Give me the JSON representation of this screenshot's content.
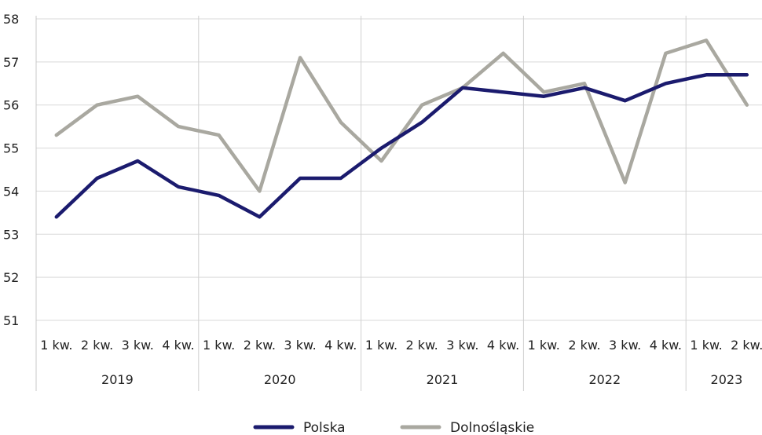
{
  "chart_data": {
    "type": "line",
    "categories": [
      "1 kw.",
      "2 kw.",
      "3 kw.",
      "4 kw.",
      "1 kw.",
      "2 kw.",
      "3 kw.",
      "4 kw.",
      "1 kw.",
      "2 kw.",
      "3 kw.",
      "4 kw.",
      "1 kw.",
      "2 kw.",
      "3 kw.",
      "4 kw.",
      "1 kw.",
      "2 kw."
    ],
    "years": [
      {
        "label": "2019",
        "start": 0,
        "end": 3
      },
      {
        "label": "2020",
        "start": 4,
        "end": 7
      },
      {
        "label": "2021",
        "start": 8,
        "end": 11
      },
      {
        "label": "2022",
        "start": 12,
        "end": 15
      },
      {
        "label": "2023",
        "start": 16,
        "end": 17
      }
    ],
    "series": [
      {
        "name": "Polska",
        "color": "#1b1b6e",
        "values": [
          53.4,
          54.3,
          54.7,
          54.1,
          53.9,
          53.4,
          54.3,
          54.3,
          55.0,
          55.6,
          56.4,
          56.3,
          56.2,
          56.4,
          56.1,
          56.5,
          56.7,
          56.7
        ]
      },
      {
        "name": "Dolnośląskie",
        "color": "#a9a8a0",
        "values": [
          55.3,
          56.0,
          56.2,
          55.5,
          55.3,
          54.0,
          57.1,
          55.6,
          54.7,
          56.0,
          56.4,
          57.2,
          56.3,
          56.5,
          54.2,
          57.2,
          57.5,
          56.0
        ]
      }
    ],
    "ylim": [
      51,
      58
    ],
    "yticks": [
      51,
      52,
      53,
      54,
      55,
      56,
      57,
      58
    ],
    "grid": true,
    "legend_position": "bottom-center"
  }
}
